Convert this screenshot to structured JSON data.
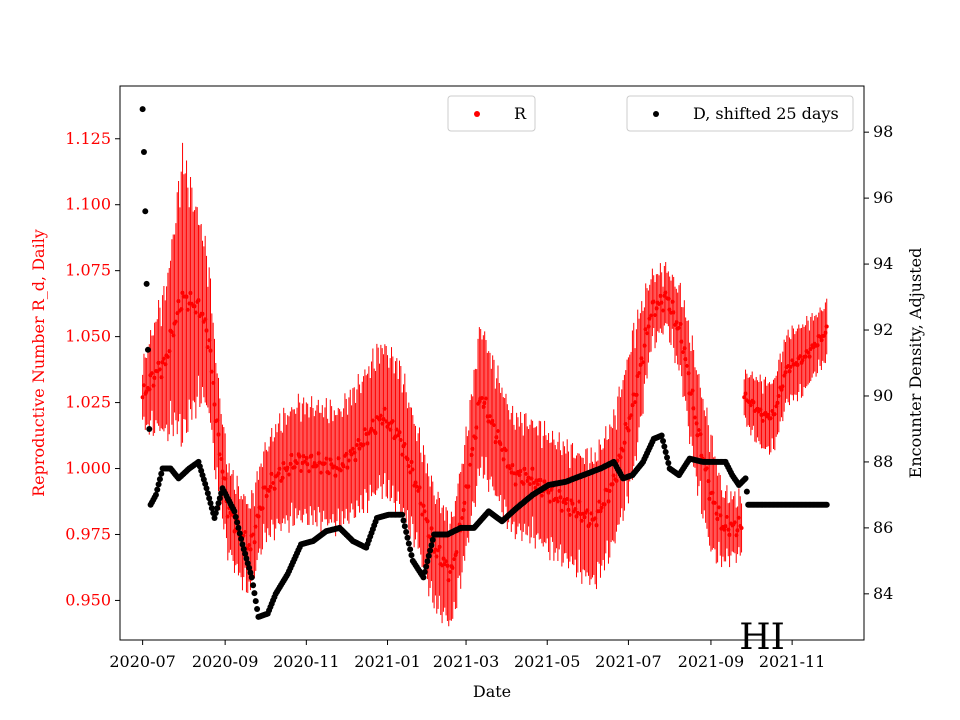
{
  "chart_data": {
    "type": "scatter",
    "title": "",
    "xlabel": "Date",
    "ylabel_left": "Reproductive Number R_d, Daily",
    "ylabel_right": "Encounter Density, Adjusted",
    "annotation": "HI",
    "x_range": [
      "2020-06-14",
      "2021-12-25"
    ],
    "ylim_left": [
      0.935,
      1.145
    ],
    "ylim_right": [
      82.6,
      99.4
    ],
    "x_ticks": [
      "2020-07",
      "2020-09",
      "2020-11",
      "2021-01",
      "2021-03",
      "2021-05",
      "2021-07",
      "2021-09",
      "2021-11"
    ],
    "x_tick_dates": [
      "2020-07-01",
      "2020-09-01",
      "2020-11-01",
      "2021-01-01",
      "2021-03-01",
      "2021-05-01",
      "2021-07-01",
      "2021-09-01",
      "2021-11-01"
    ],
    "y_ticks_left": [
      0.95,
      0.975,
      1.0,
      1.025,
      1.05,
      1.075,
      1.1,
      1.125
    ],
    "y_tick_labels_left": [
      "0.950",
      "0.975",
      "1.000",
      "1.025",
      "1.050",
      "1.075",
      "1.100",
      "1.125"
    ],
    "y_ticks_right": [
      84,
      86,
      88,
      90,
      92,
      94,
      96,
      98
    ],
    "colors": {
      "R": "#ff0000",
      "D": "#000000"
    },
    "series": [
      {
        "name": "R",
        "axis": "left",
        "color": "#ff0000",
        "style": "errorbar-points",
        "anchors": [
          [
            "2020-07-01",
            1.027,
            0.01
          ],
          [
            "2020-07-06",
            1.032,
            0.015
          ],
          [
            "2020-07-12",
            1.037,
            0.02
          ],
          [
            "2020-07-18",
            1.04,
            0.025
          ],
          [
            "2020-07-25",
            1.055,
            0.035
          ],
          [
            "2020-07-31",
            1.065,
            0.05
          ],
          [
            "2020-08-06",
            1.063,
            0.04
          ],
          [
            "2020-08-14",
            1.06,
            0.03
          ],
          [
            "2020-08-20",
            1.048,
            0.025
          ],
          [
            "2020-08-26",
            1.015,
            0.02
          ],
          [
            "2020-09-03",
            0.985,
            0.015
          ],
          [
            "2020-09-12",
            0.975,
            0.015
          ],
          [
            "2020-09-20",
            0.97,
            0.015
          ],
          [
            "2020-09-30",
            0.99,
            0.015
          ],
          [
            "2020-10-10",
            0.997,
            0.018
          ],
          [
            "2020-10-25",
            1.003,
            0.02
          ],
          [
            "2020-11-10",
            1.002,
            0.02
          ],
          [
            "2020-11-25",
            1.0,
            0.02
          ],
          [
            "2020-12-10",
            1.008,
            0.022
          ],
          [
            "2020-12-28",
            1.02,
            0.025
          ],
          [
            "2021-01-10",
            1.012,
            0.025
          ],
          [
            "2021-01-22",
            0.995,
            0.02
          ],
          [
            "2021-02-05",
            0.97,
            0.02
          ],
          [
            "2021-02-18",
            0.96,
            0.018
          ],
          [
            "2021-03-01",
            0.99,
            0.02
          ],
          [
            "2021-03-12",
            1.028,
            0.025
          ],
          [
            "2021-03-22",
            1.015,
            0.022
          ],
          [
            "2021-04-05",
            0.998,
            0.02
          ],
          [
            "2021-04-20",
            0.996,
            0.02
          ],
          [
            "2021-05-05",
            0.99,
            0.02
          ],
          [
            "2021-05-20",
            0.985,
            0.02
          ],
          [
            "2021-06-05",
            0.98,
            0.022
          ],
          [
            "2021-06-20",
            0.995,
            0.022
          ],
          [
            "2021-07-05",
            1.025,
            0.025
          ],
          [
            "2021-07-18",
            1.06,
            0.012
          ],
          [
            "2021-07-30",
            1.065,
            0.01
          ],
          [
            "2021-08-10",
            1.05,
            0.015
          ],
          [
            "2021-08-20",
            1.02,
            0.02
          ],
          [
            "2021-09-01",
            0.99,
            0.02
          ],
          [
            "2021-09-10",
            0.978,
            0.012
          ],
          [
            "2021-09-20",
            0.978,
            0.01
          ],
          [
            "2021-09-24",
            0.978,
            0.01
          ]
        ],
        "anchors_late": [
          [
            "2021-09-26",
            1.027,
            0.008
          ],
          [
            "2021-10-01",
            1.025,
            0.01
          ],
          [
            "2021-10-10",
            1.02,
            0.012
          ],
          [
            "2021-10-18",
            1.02,
            0.012
          ],
          [
            "2021-10-28",
            1.038,
            0.012
          ],
          [
            "2021-11-10",
            1.042,
            0.012
          ],
          [
            "2021-11-20",
            1.048,
            0.01
          ],
          [
            "2021-11-27",
            1.052,
            0.01
          ]
        ]
      },
      {
        "name": "D, shifted 25 days",
        "axis": "right",
        "color": "#000000",
        "style": "points",
        "anchors": [
          [
            "2020-07-01",
            98.7
          ],
          [
            "2020-07-02",
            97.4
          ],
          [
            "2020-07-03",
            95.6
          ],
          [
            "2020-07-04",
            93.4
          ],
          [
            "2020-07-05",
            91.4
          ],
          [
            "2020-07-06",
            89.0
          ],
          [
            "2020-07-07",
            86.7
          ],
          [
            "2020-07-11",
            87.0
          ],
          [
            "2020-07-16",
            87.8
          ],
          [
            "2020-07-22",
            87.8
          ],
          [
            "2020-07-28",
            87.5
          ],
          [
            "2020-08-05",
            87.8
          ],
          [
            "2020-08-12",
            88.0
          ],
          [
            "2020-08-18",
            87.2
          ],
          [
            "2020-08-24",
            86.3
          ],
          [
            "2020-08-30",
            87.2
          ],
          [
            "2020-09-08",
            86.5
          ],
          [
            "2020-09-14",
            85.5
          ],
          [
            "2020-09-21",
            84.5
          ],
          [
            "2020-09-26",
            83.3
          ],
          [
            "2020-10-03",
            83.4
          ],
          [
            "2020-10-09",
            84.0
          ],
          [
            "2020-10-18",
            84.6
          ],
          [
            "2020-10-28",
            85.5
          ],
          [
            "2020-11-06",
            85.6
          ],
          [
            "2020-11-16",
            85.9
          ],
          [
            "2020-11-26",
            86.0
          ],
          [
            "2020-12-06",
            85.6
          ],
          [
            "2020-12-16",
            85.4
          ],
          [
            "2020-12-24",
            86.3
          ],
          [
            "2021-01-02",
            86.4
          ],
          [
            "2021-01-12",
            86.4
          ],
          [
            "2021-01-20",
            85.0
          ],
          [
            "2021-01-28",
            84.5
          ],
          [
            "2021-02-05",
            85.8
          ],
          [
            "2021-02-15",
            85.8
          ],
          [
            "2021-02-25",
            86.0
          ],
          [
            "2021-03-07",
            86.0
          ],
          [
            "2021-03-18",
            86.5
          ],
          [
            "2021-03-28",
            86.2
          ],
          [
            "2021-04-08",
            86.6
          ],
          [
            "2021-04-20",
            87.0
          ],
          [
            "2021-05-02",
            87.3
          ],
          [
            "2021-05-15",
            87.4
          ],
          [
            "2021-05-28",
            87.6
          ],
          [
            "2021-06-10",
            87.8
          ],
          [
            "2021-06-20",
            88.0
          ],
          [
            "2021-06-27",
            87.5
          ],
          [
            "2021-07-04",
            87.6
          ],
          [
            "2021-07-12",
            88.0
          ],
          [
            "2021-07-20",
            88.7
          ],
          [
            "2021-07-26",
            88.8
          ],
          [
            "2021-08-01",
            87.8
          ],
          [
            "2021-08-08",
            87.6
          ],
          [
            "2021-08-16",
            88.1
          ],
          [
            "2021-08-26",
            88.0
          ],
          [
            "2021-09-05",
            88.0
          ],
          [
            "2021-09-12",
            88.0
          ],
          [
            "2021-09-17",
            87.6
          ],
          [
            "2021-09-22",
            87.3
          ],
          [
            "2021-09-27",
            87.5
          ],
          [
            "2021-09-29",
            86.7
          ],
          [
            "2021-10-15",
            86.7
          ],
          [
            "2021-11-27",
            86.7
          ]
        ]
      }
    ],
    "legend": [
      {
        "label": "R",
        "color": "#ff0000",
        "placement": "top-center"
      },
      {
        "label": "D, shifted 25 days",
        "color": "#000000",
        "placement": "top-right"
      }
    ]
  }
}
